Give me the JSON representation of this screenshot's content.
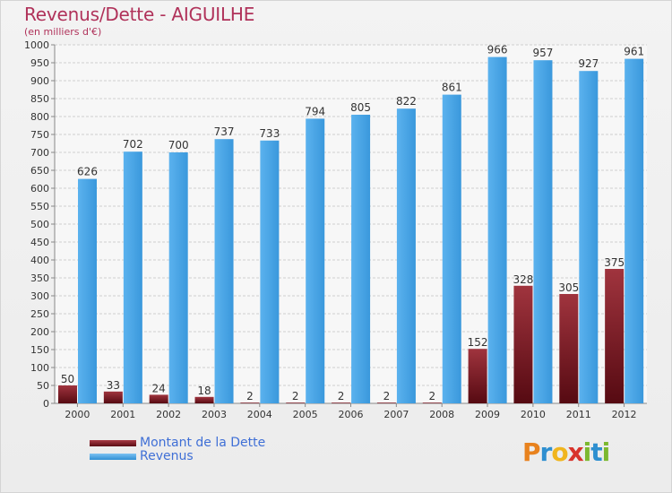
{
  "title": "Revenus/Dette - AIGUILHE",
  "subtitle": "(en milliers d'€)",
  "colors": {
    "dette": "#7a1a24",
    "revenus": "#4aa4e6",
    "title": "#b0325a",
    "legend_text": "#3f6fd6"
  },
  "legend": [
    {
      "label": "Montant de la Dette",
      "color": "#7a1a24"
    },
    {
      "label": "Revenus",
      "color": "#4aa4e6"
    }
  ],
  "logo": {
    "letters": [
      "P",
      "r",
      "o",
      "x",
      "i",
      "t",
      "i"
    ],
    "colors": [
      "#e8821e",
      "#2e8fd0",
      "#f0b51e",
      "#d8342c",
      "#7cb82f",
      "#2e8fd0",
      "#7cb82f"
    ]
  },
  "chart_data": {
    "type": "bar",
    "categories": [
      "2000",
      "2001",
      "2002",
      "2003",
      "2004",
      "2005",
      "2006",
      "2007",
      "2008",
      "2009",
      "2010",
      "2011",
      "2012"
    ],
    "series": [
      {
        "name": "Montant de la Dette",
        "values": [
          50,
          33,
          24,
          18,
          2,
          2,
          2,
          2,
          2,
          152,
          328,
          305,
          375
        ]
      },
      {
        "name": "Revenus",
        "values": [
          626,
          702,
          700,
          737,
          733,
          794,
          805,
          822,
          861,
          966,
          957,
          927,
          961
        ]
      }
    ],
    "ylim": [
      0,
      1000
    ],
    "ytick_step": 50,
    "grid": true,
    "legend_position": "bottom-left"
  }
}
